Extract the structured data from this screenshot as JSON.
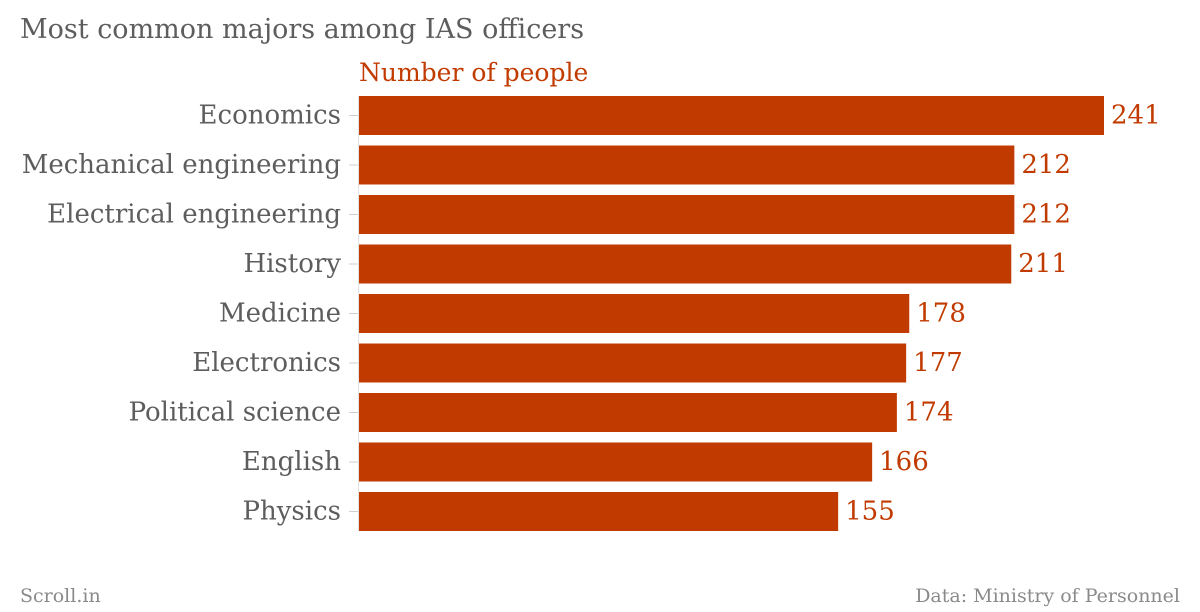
{
  "title": "Most common majors among IAS officers",
  "colors": {
    "bar": "#c13b00",
    "label": "#c13b00",
    "category": "#5d5d5d",
    "footer": "#8a8a8a"
  },
  "chart_data": {
    "type": "bar",
    "orientation": "horizontal",
    "title": "Most common majors among IAS officers",
    "categories": [
      "Economics",
      "Mechanical engineering",
      "Electrical engineering",
      "History",
      "Medicine",
      "Electronics",
      "Political science",
      "English",
      "Physics"
    ],
    "series": [
      {
        "name": "Number of people",
        "values": [
          241,
          212,
          212,
          211,
          178,
          177,
          174,
          166,
          155
        ]
      }
    ],
    "xlim": [
      0,
      241
    ],
    "grid": false,
    "data_labels": true
  },
  "footer": {
    "source_left": "Scroll.in",
    "source_right": "Data: Ministry of Personnel"
  }
}
